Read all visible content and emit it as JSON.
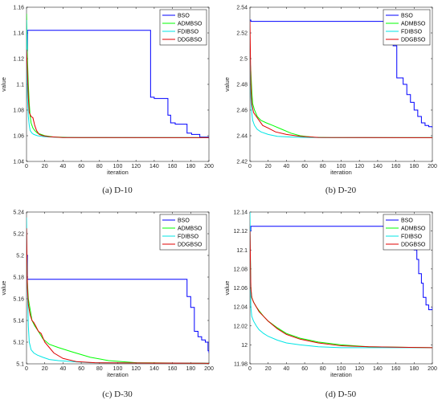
{
  "chart_data": [
    {
      "type": "line",
      "caption": "(a)  D-10",
      "xlabel": "iteration",
      "ylabel": "value",
      "xlim": [
        0,
        200
      ],
      "ylim": [
        1.04,
        1.16
      ],
      "xticks": [
        0,
        20,
        40,
        60,
        80,
        100,
        120,
        140,
        160,
        180,
        200
      ],
      "yticks": [
        1.04,
        1.06,
        1.08,
        1.1,
        1.12,
        1.14,
        1.16
      ],
      "ytick_labels": [
        "1.04",
        "1.06",
        "1.08",
        "1.1",
        "1.12",
        "1.14",
        "1.16"
      ],
      "legend": "top-right",
      "series": [
        {
          "name": "BSO",
          "color": "#0000ff",
          "step": true,
          "x": [
            0,
            1,
            134,
            136,
            140,
            155,
            158,
            163,
            176,
            181,
            190,
            200
          ],
          "y": [
            1.126,
            1.142,
            1.142,
            1.09,
            1.089,
            1.076,
            1.07,
            1.069,
            1.062,
            1.061,
            1.059,
            1.058
          ]
        },
        {
          "name": "ADMBSO",
          "color": "#00ff00",
          "step": false,
          "x": [
            0,
            1,
            2,
            3,
            4,
            5,
            7,
            9,
            12,
            16,
            20,
            30,
            40,
            60,
            200
          ],
          "y": [
            1.155,
            1.12,
            1.1,
            1.085,
            1.075,
            1.07,
            1.066,
            1.064,
            1.062,
            1.061,
            1.06,
            1.059,
            1.0588,
            1.0585,
            1.0585
          ]
        },
        {
          "name": "FDIBSO",
          "color": "#00e5e5",
          "step": false,
          "x": [
            0,
            1,
            2,
            3,
            4,
            6,
            8,
            12,
            20,
            40,
            200
          ],
          "y": [
            1.15,
            1.09,
            1.075,
            1.068,
            1.064,
            1.062,
            1.061,
            1.06,
            1.0592,
            1.0586,
            1.0585
          ]
        },
        {
          "name": "DDGBSO",
          "color": "#e00000",
          "step": false,
          "x": [
            0,
            1,
            2,
            3,
            5,
            7,
            9,
            11,
            14,
            18,
            25,
            40,
            200
          ],
          "y": [
            1.127,
            1.11,
            1.09,
            1.078,
            1.075,
            1.074,
            1.068,
            1.064,
            1.061,
            1.06,
            1.0592,
            1.0586,
            1.0585
          ]
        }
      ]
    },
    {
      "type": "line",
      "caption": "(b)  D-20",
      "xlabel": "iteration",
      "ylabel": "value",
      "xlim": [
        0,
        200
      ],
      "ylim": [
        2.42,
        2.54
      ],
      "xticks": [
        0,
        20,
        40,
        60,
        80,
        100,
        120,
        140,
        160,
        180,
        200
      ],
      "yticks": [
        2.42,
        2.44,
        2.46,
        2.48,
        2.5,
        2.52,
        2.54
      ],
      "ytick_labels": [
        "2.42",
        "2.44",
        "2.46",
        "2.48",
        "2.5",
        "2.52",
        "2.54"
      ],
      "legend": "top-right",
      "series": [
        {
          "name": "BSO",
          "color": "#0000ff",
          "step": true,
          "x": [
            0,
            1,
            155,
            157,
            161,
            168,
            172,
            176,
            180,
            184,
            188,
            192,
            196,
            200
          ],
          "y": [
            2.53,
            2.529,
            2.529,
            2.51,
            2.485,
            2.48,
            2.472,
            2.466,
            2.46,
            2.455,
            2.45,
            2.448,
            2.447,
            2.446
          ]
        },
        {
          "name": "ADMBSO",
          "color": "#00ff00",
          "step": false,
          "x": [
            0,
            1,
            2,
            3,
            5,
            8,
            12,
            18,
            25,
            35,
            45,
            55,
            70,
            90,
            200
          ],
          "y": [
            2.5,
            2.49,
            2.475,
            2.465,
            2.46,
            2.455,
            2.452,
            2.45,
            2.448,
            2.445,
            2.442,
            2.44,
            2.4388,
            2.4385,
            2.4385
          ]
        },
        {
          "name": "FDIBSO",
          "color": "#00e5e5",
          "step": false,
          "x": [
            0,
            1,
            2,
            3,
            5,
            8,
            12,
            20,
            30,
            45,
            60,
            80,
            200
          ],
          "y": [
            2.5,
            2.47,
            2.458,
            2.452,
            2.448,
            2.445,
            2.443,
            2.441,
            2.4395,
            2.439,
            2.4387,
            2.4385,
            2.4385
          ]
        },
        {
          "name": "DDGBSO",
          "color": "#e00000",
          "step": false,
          "x": [
            0,
            1,
            2,
            4,
            7,
            10,
            14,
            20,
            28,
            40,
            55,
            75,
            200
          ],
          "y": [
            2.529,
            2.48,
            2.465,
            2.458,
            2.455,
            2.452,
            2.448,
            2.446,
            2.443,
            2.441,
            2.4395,
            2.4387,
            2.4385
          ]
        }
      ]
    },
    {
      "type": "line",
      "caption": "(c)  D-30",
      "xlabel": "iteration",
      "ylabel": "value",
      "xlim": [
        0,
        200
      ],
      "ylim": [
        5.1,
        5.24
      ],
      "xticks": [
        0,
        20,
        40,
        60,
        80,
        100,
        120,
        140,
        160,
        180,
        200
      ],
      "yticks": [
        5.1,
        5.12,
        5.14,
        5.16,
        5.18,
        5.2,
        5.22,
        5.24
      ],
      "ytick_labels": [
        "5.1",
        "5.12",
        "5.14",
        "5.16",
        "5.18",
        "5.2",
        "5.22",
        "5.24"
      ],
      "legend": "top-right",
      "series": [
        {
          "name": "BSO",
          "color": "#0000ff",
          "step": true,
          "x": [
            0,
            1,
            173,
            176,
            180,
            184,
            188,
            192,
            196,
            199,
            200
          ],
          "y": [
            5.2,
            5.178,
            5.178,
            5.162,
            5.152,
            5.13,
            5.125,
            5.122,
            5.12,
            5.112,
            5.11
          ]
        },
        {
          "name": "ADMBSO",
          "color": "#00ff00",
          "step": false,
          "x": [
            0,
            1,
            2,
            4,
            6,
            9,
            13,
            18,
            25,
            35,
            50,
            70,
            90,
            120,
            200
          ],
          "y": [
            5.215,
            5.175,
            5.16,
            5.15,
            5.14,
            5.135,
            5.13,
            5.123,
            5.118,
            5.115,
            5.111,
            5.106,
            5.103,
            5.101,
            5.1005
          ]
        },
        {
          "name": "FDIBSO",
          "color": "#00e5e5",
          "step": false,
          "x": [
            0,
            1,
            2,
            3,
            5,
            8,
            12,
            18,
            25,
            35,
            50,
            70,
            200
          ],
          "y": [
            5.235,
            5.17,
            5.135,
            5.12,
            5.113,
            5.11,
            5.108,
            5.106,
            5.104,
            5.103,
            5.102,
            5.101,
            5.1005
          ]
        },
        {
          "name": "DDGBSO",
          "color": "#e00000",
          "step": false,
          "x": [
            0,
            1,
            2,
            4,
            6,
            8,
            10,
            13,
            16,
            20,
            25,
            30,
            40,
            55,
            75,
            200
          ],
          "y": [
            5.225,
            5.17,
            5.155,
            5.145,
            5.14,
            5.138,
            5.135,
            5.13,
            5.128,
            5.12,
            5.115,
            5.11,
            5.105,
            5.102,
            5.101,
            5.1005
          ]
        }
      ]
    },
    {
      "type": "line",
      "caption": "(d)  D-50",
      "xlabel": "iteration",
      "ylabel": "value",
      "xlim": [
        0,
        200
      ],
      "ylim": [
        11.98,
        12.14
      ],
      "xticks": [
        0,
        20,
        40,
        60,
        80,
        100,
        120,
        140,
        160,
        180,
        200
      ],
      "yticks": [
        11.98,
        12,
        12.02,
        12.04,
        12.06,
        12.08,
        12.1,
        12.12,
        12.14
      ],
      "ytick_labels": [
        "11.98",
        "12",
        "12.02",
        "12.04",
        "12.06",
        "12.08",
        "12.1",
        "12.12",
        "12.14"
      ],
      "legend": "top-right",
      "series": [
        {
          "name": "BSO",
          "color": "#0000ff",
          "step": true,
          "x": [
            0,
            1,
            175,
            177,
            180,
            183,
            185,
            188,
            190,
            193,
            196,
            200
          ],
          "y": [
            12.12,
            12.125,
            12.125,
            12.11,
            12.1,
            12.09,
            12.075,
            12.065,
            12.05,
            12.042,
            12.037,
            12.04
          ]
        },
        {
          "name": "ADMBSO",
          "color": "#00ff00",
          "step": false,
          "x": [
            0,
            1,
            2,
            4,
            7,
            10,
            15,
            20,
            30,
            40,
            55,
            75,
            100,
            130,
            200
          ],
          "y": [
            12.12,
            12.06,
            12.05,
            12.045,
            12.04,
            12.036,
            12.03,
            12.025,
            12.018,
            12.012,
            12.007,
            12.003,
            12.0,
            11.998,
            11.997
          ]
        },
        {
          "name": "FDIBSO",
          "color": "#00e5e5",
          "step": false,
          "x": [
            0,
            1,
            2,
            4,
            7,
            10,
            15,
            20,
            30,
            40,
            55,
            75,
            100,
            200
          ],
          "y": [
            12.14,
            12.04,
            12.03,
            12.025,
            12.02,
            12.016,
            12.012,
            12.009,
            12.005,
            12.002,
            12.0,
            11.998,
            11.997,
            11.997
          ]
        },
        {
          "name": "DDGBSO",
          "color": "#e00000",
          "step": false,
          "x": [
            0,
            1,
            2,
            4,
            7,
            10,
            15,
            20,
            30,
            40,
            55,
            75,
            100,
            130,
            200
          ],
          "y": [
            12.12,
            12.06,
            12.05,
            12.045,
            12.04,
            12.035,
            12.03,
            12.025,
            12.017,
            12.011,
            12.006,
            12.002,
            11.999,
            11.998,
            11.997
          ]
        }
      ]
    }
  ]
}
